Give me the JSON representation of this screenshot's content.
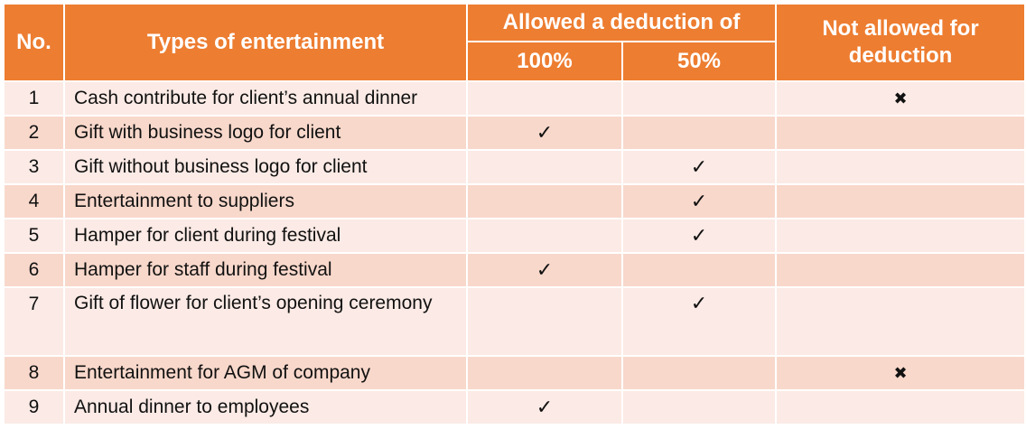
{
  "header": {
    "no": "No.",
    "types": "Types of entertainment",
    "allowed": "Allowed a deduction of",
    "pct100": "100%",
    "pct50": "50%",
    "not_allowed": "Not allowed for deduction"
  },
  "marks": {
    "check": "✓",
    "cross": "✖"
  },
  "rows": [
    {
      "no": "1",
      "desc": "Cash contribute for client’s annual dinner",
      "d100": "",
      "d50": "",
      "not_allowed": "✖"
    },
    {
      "no": "2",
      "desc": "Gift with business logo for client",
      "d100": "✓",
      "d50": "",
      "not_allowed": ""
    },
    {
      "no": "3",
      "desc": "Gift without business logo for client",
      "d100": "",
      "d50": "✓",
      "not_allowed": ""
    },
    {
      "no": "4",
      "desc": "Entertainment to suppliers",
      "d100": "",
      "d50": "✓",
      "not_allowed": ""
    },
    {
      "no": "5",
      "desc": "Hamper for client during festival",
      "d100": "",
      "d50": "✓",
      "not_allowed": ""
    },
    {
      "no": "6",
      "desc": "Hamper for staff during festival",
      "d100": "✓",
      "d50": "",
      "not_allowed": ""
    },
    {
      "no": "7",
      "desc": "Gift of flower for client’s opening ceremony",
      "d100": "",
      "d50": "✓",
      "not_allowed": ""
    },
    {
      "no": "8",
      "desc": "Entertainment for AGM of company",
      "d100": "",
      "d50": "",
      "not_allowed": "✖"
    },
    {
      "no": "9",
      "desc": "Annual dinner to employees",
      "d100": "✓",
      "d50": "",
      "not_allowed": ""
    }
  ],
  "colors": {
    "header_bg": "#ED7D31",
    "row_light": "#FBEAE5",
    "row_dark": "#F8D8CB"
  }
}
